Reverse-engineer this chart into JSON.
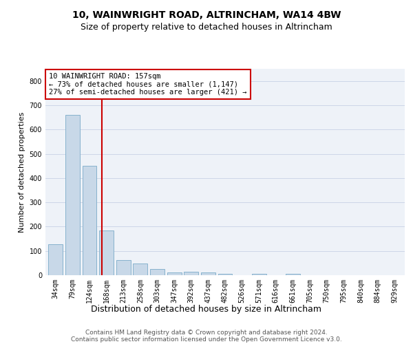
{
  "title1": "10, WAINWRIGHT ROAD, ALTRINCHAM, WA14 4BW",
  "title2": "Size of property relative to detached houses in Altrincham",
  "xlabel": "Distribution of detached houses by size in Altrincham",
  "ylabel": "Number of detached properties",
  "categories": [
    "34sqm",
    "79sqm",
    "124sqm",
    "168sqm",
    "213sqm",
    "258sqm",
    "303sqm",
    "347sqm",
    "392sqm",
    "437sqm",
    "482sqm",
    "526sqm",
    "571sqm",
    "616sqm",
    "661sqm",
    "705sqm",
    "750sqm",
    "795sqm",
    "840sqm",
    "884sqm",
    "929sqm"
  ],
  "values": [
    128,
    660,
    450,
    183,
    63,
    48,
    25,
    11,
    14,
    11,
    6,
    0,
    7,
    0,
    7,
    0,
    0,
    0,
    0,
    0,
    0
  ],
  "bar_color": "#c8d8e8",
  "bar_edge_color": "#7aaac8",
  "property_line_color": "#cc0000",
  "annotation_text": "10 WAINWRIGHT ROAD: 157sqm\n← 73% of detached houses are smaller (1,147)\n27% of semi-detached houses are larger (421) →",
  "annotation_box_color": "#cc0000",
  "grid_color": "#ccd6e8",
  "background_color": "#eef2f8",
  "footer1": "Contains HM Land Registry data © Crown copyright and database right 2024.",
  "footer2": "Contains public sector information licensed under the Open Government Licence v3.0.",
  "ylim": [
    0,
    850
  ],
  "title1_fontsize": 10,
  "title2_fontsize": 9,
  "xlabel_fontsize": 9,
  "ylabel_fontsize": 8,
  "tick_fontsize": 7,
  "annotation_fontsize": 7.5,
  "footer_fontsize": 6.5
}
